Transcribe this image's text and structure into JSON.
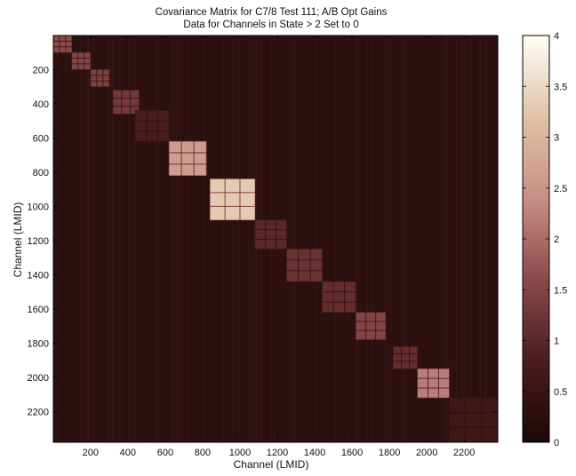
{
  "chart_data": {
    "type": "heatmap",
    "title": "Covariance Matrix for C7/8 Test 111; A/B Opt Gains",
    "subtitle": "Data for Channels in State > 2 Set to 0",
    "xlabel": "Channel (LMID)",
    "ylabel": "Channel (LMID)",
    "xlim": [
      1,
      2380
    ],
    "ylim": [
      1,
      2380
    ],
    "x_ticks": [
      200,
      400,
      600,
      800,
      1000,
      1200,
      1400,
      1600,
      1800,
      2000,
      2200
    ],
    "y_ticks": [
      200,
      400,
      600,
      800,
      1000,
      1200,
      1400,
      1600,
      1800,
      2000,
      2200
    ],
    "y_axis_reversed": true,
    "colorbar": {
      "min": 0,
      "max": 4,
      "ticks": [
        0,
        0.5,
        1,
        1.5,
        2,
        2.5,
        3,
        3.5,
        4
      ],
      "colormap": [
        "#1a0808",
        "#4a1c1c",
        "#8a4a4a",
        "#c98f87",
        "#e0c2a8",
        "#fffff4"
      ]
    },
    "background_value": 0.3,
    "diagonal_blocks": [
      {
        "start": 1,
        "end": 100,
        "value": 1.6
      },
      {
        "start": 100,
        "end": 200,
        "value": 1.5
      },
      {
        "start": 200,
        "end": 300,
        "value": 1.4
      },
      {
        "start": 320,
        "end": 460,
        "value": 1.3
      },
      {
        "start": 440,
        "end": 620,
        "value": 0.8
      },
      {
        "start": 620,
        "end": 820,
        "value": 2.6
      },
      {
        "start": 840,
        "end": 1080,
        "value": 3.3
      },
      {
        "start": 1080,
        "end": 1250,
        "value": 1.0
      },
      {
        "start": 1250,
        "end": 1440,
        "value": 1.2
      },
      {
        "start": 1440,
        "end": 1620,
        "value": 1.1
      },
      {
        "start": 1620,
        "end": 1780,
        "value": 1.5
      },
      {
        "start": 1820,
        "end": 1950,
        "value": 1.1
      },
      {
        "start": 1950,
        "end": 2120,
        "value": 2.2
      },
      {
        "start": 2120,
        "end": 2380,
        "value": 0.6
      }
    ]
  }
}
